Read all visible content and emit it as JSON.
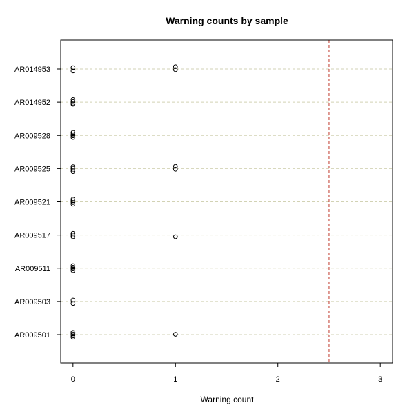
{
  "chart_data": {
    "type": "scatter",
    "title": "Warning counts by sample",
    "xlabel": "Warning count",
    "ylabel": "",
    "xlim": [
      -0.12,
      3.12
    ],
    "x_ticks": [
      "0",
      "1",
      "2",
      "3"
    ],
    "categories": [
      "AR009501",
      "AR009503",
      "AR009511",
      "AR009517",
      "AR009521",
      "AR009525",
      "AR009528",
      "AR014952",
      "AR014953"
    ],
    "grid": "horizontal dashed",
    "threshold": {
      "x": 2.5,
      "color": "#c0392b",
      "style": "dashed"
    },
    "colors": {
      "grid": "#d2d2b4",
      "threshold": "#c0392b",
      "points": "#000000"
    },
    "points": [
      {
        "sample": "AR009501",
        "x": 0,
        "offset": -0.07
      },
      {
        "sample": "AR009501",
        "x": 0,
        "offset": -0.02
      },
      {
        "sample": "AR009501",
        "x": 0,
        "offset": 0.04
      },
      {
        "sample": "AR009501",
        "x": 0,
        "offset": 0.08
      },
      {
        "sample": "AR009501",
        "x": 1,
        "offset": -0.01
      },
      {
        "sample": "AR009503",
        "x": 0,
        "offset": -0.04
      },
      {
        "sample": "AR009503",
        "x": 0,
        "offset": 0.06
      },
      {
        "sample": "AR009511",
        "x": 0,
        "offset": -0.08
      },
      {
        "sample": "AR009511",
        "x": 0,
        "offset": -0.03
      },
      {
        "sample": "AR009511",
        "x": 0,
        "offset": 0.02
      },
      {
        "sample": "AR009511",
        "x": 0,
        "offset": 0.07
      },
      {
        "sample": "AR009517",
        "x": 0,
        "offset": -0.05
      },
      {
        "sample": "AR009517",
        "x": 0,
        "offset": 0.0
      },
      {
        "sample": "AR009517",
        "x": 0,
        "offset": 0.05
      },
      {
        "sample": "AR009517",
        "x": 1,
        "offset": 0.05
      },
      {
        "sample": "AR009521",
        "x": 0,
        "offset": -0.08
      },
      {
        "sample": "AR009521",
        "x": 0,
        "offset": -0.03
      },
      {
        "sample": "AR009521",
        "x": 0,
        "offset": 0.02
      },
      {
        "sample": "AR009521",
        "x": 0,
        "offset": 0.07
      },
      {
        "sample": "AR009525",
        "x": 0,
        "offset": -0.06
      },
      {
        "sample": "AR009525",
        "x": 0,
        "offset": -0.01
      },
      {
        "sample": "AR009525",
        "x": 0,
        "offset": 0.04
      },
      {
        "sample": "AR009525",
        "x": 0,
        "offset": 0.09
      },
      {
        "sample": "AR009525",
        "x": 1,
        "offset": -0.07
      },
      {
        "sample": "AR009525",
        "x": 1,
        "offset": 0.02
      },
      {
        "sample": "AR009528",
        "x": 0,
        "offset": -0.09
      },
      {
        "sample": "AR009528",
        "x": 0,
        "offset": -0.04
      },
      {
        "sample": "AR009528",
        "x": 0,
        "offset": 0.01
      },
      {
        "sample": "AR009528",
        "x": 0,
        "offset": 0.06
      },
      {
        "sample": "AR014952",
        "x": 0,
        "offset": -0.08
      },
      {
        "sample": "AR014952",
        "x": 0,
        "offset": -0.02
      },
      {
        "sample": "AR014952",
        "x": 0,
        "offset": 0.03
      },
      {
        "sample": "AR014952",
        "x": 0,
        "offset": 0.06
      },
      {
        "sample": "AR014953",
        "x": 0,
        "offset": -0.04
      },
      {
        "sample": "AR014953",
        "x": 0,
        "offset": 0.06
      },
      {
        "sample": "AR014953",
        "x": 1,
        "offset": -0.07
      },
      {
        "sample": "AR014953",
        "x": 1,
        "offset": 0.02
      }
    ]
  }
}
